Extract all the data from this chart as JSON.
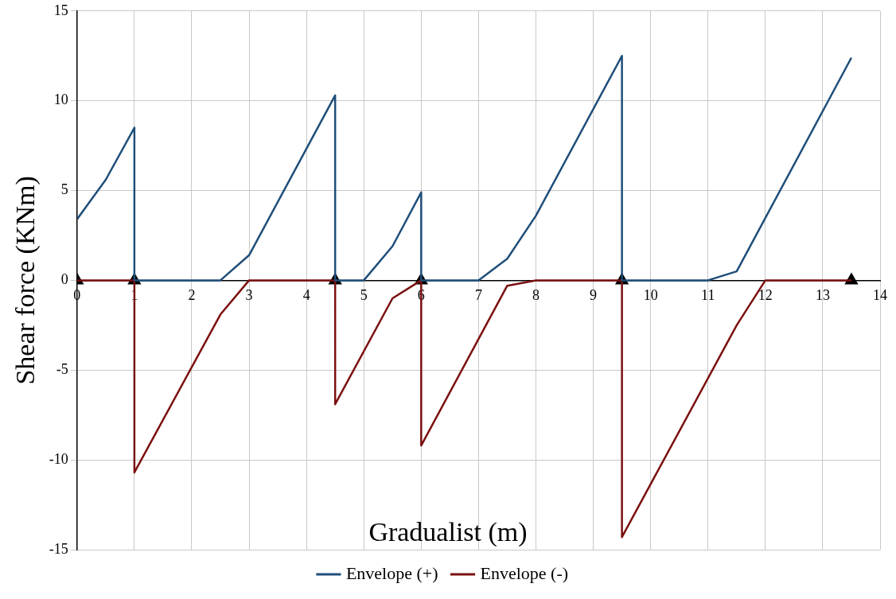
{
  "chart_data": {
    "type": "line",
    "xlabel": "Gradualist (m)",
    "ylabel": "Shear force (KNm)",
    "xlim": [
      0,
      14
    ],
    "xticks": [
      0,
      1,
      2,
      3,
      4,
      5,
      6,
      7,
      8,
      9,
      10,
      11,
      12,
      13,
      14
    ],
    "ylim": [
      -15,
      15
    ],
    "yticks": [
      -15,
      -10,
      -5,
      0,
      5,
      10,
      15
    ],
    "grid": true,
    "legend": "bottom",
    "marker": "none",
    "line_style": "solid",
    "series": [
      {
        "name": "Envelope (+)",
        "color": "#1f4e79",
        "x": [
          0,
          0.5,
          1,
          1,
          2.5,
          3,
          4.5,
          4.5,
          5,
          5.5,
          6,
          6,
          7,
          7.5,
          8,
          9.5,
          9.5,
          11,
          11.5,
          13.5
        ],
        "values": [
          3.4,
          5.6,
          8.5,
          0,
          0,
          1.4,
          10.3,
          0,
          0,
          1.9,
          4.9,
          0,
          0,
          1.2,
          3.6,
          12.5,
          0,
          0,
          0.5,
          12.4
        ]
      },
      {
        "name": "Envelope (-)",
        "color": "#7b1010",
        "x": [
          0,
          1,
          1,
          2.5,
          3,
          4.5,
          4.5,
          5.5,
          6,
          6,
          7.5,
          8,
          9.5,
          9.5,
          11.5,
          12,
          13.5
        ],
        "values": [
          0,
          0,
          -10.7,
          -1.9,
          0,
          0,
          -6.9,
          -1.0,
          0,
          -9.2,
          -0.3,
          0,
          0,
          -14.3,
          -2.5,
          0,
          0
        ]
      },
      {
        "type": "scatter",
        "marker": "triangle",
        "color": "#000000",
        "x": [
          0,
          1,
          4.5,
          6,
          9.5,
          13.5
        ],
        "values": [
          0,
          0,
          0,
          0,
          0,
          0
        ]
      }
    ]
  }
}
